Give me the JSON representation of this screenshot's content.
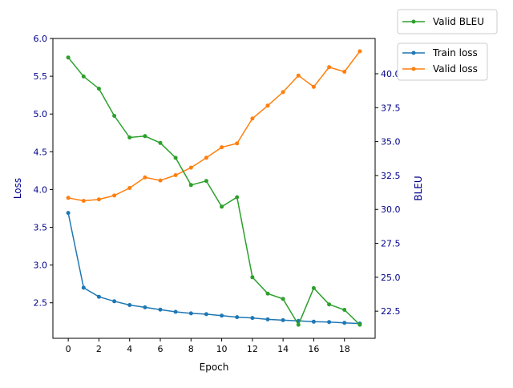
{
  "chart_data": {
    "type": "line",
    "x_axis": {
      "label": "Epoch",
      "ticks": [
        0,
        2,
        4,
        6,
        8,
        10,
        12,
        14,
        16,
        18
      ],
      "range": [
        -1,
        20
      ]
    },
    "left_axis": {
      "label": "Loss",
      "label_color": "#00008b",
      "tick_color": "#00008b",
      "ticks": [
        "2.5",
        "3.0",
        "3.5",
        "4.0",
        "4.5",
        "5.0",
        "5.5",
        "6.0"
      ],
      "range": [
        2.03,
        6.0
      ]
    },
    "right_axis": {
      "label": "BLEU",
      "label_color": "#00008b",
      "tick_color": "#00008b",
      "ticks": [
        "22.5",
        "25.0",
        "27.5",
        "30.0",
        "32.5",
        "35.0",
        "37.5",
        "40.0"
      ],
      "range": [
        20.5,
        42.6
      ]
    },
    "x": [
      0,
      1,
      2,
      3,
      4,
      5,
      6,
      7,
      8,
      9,
      10,
      11,
      12,
      13,
      14,
      15,
      16,
      17,
      18,
      19
    ],
    "series": [
      {
        "name": "Train loss",
        "axis": "left",
        "color": "#1f77b4",
        "values": [
          3.69,
          2.7,
          2.58,
          2.52,
          2.47,
          2.44,
          2.41,
          2.38,
          2.36,
          2.35,
          2.33,
          2.31,
          2.3,
          2.28,
          2.27,
          2.26,
          2.25,
          2.245,
          2.235,
          2.225
        ]
      },
      {
        "name": "Valid loss",
        "axis": "left",
        "color": "#ff7f0e",
        "values": [
          3.89,
          3.85,
          3.87,
          3.92,
          4.02,
          4.16,
          4.12,
          4.19,
          4.29,
          4.42,
          4.56,
          4.61,
          4.94,
          5.11,
          5.29,
          5.51,
          5.36,
          5.62,
          5.56,
          5.83
        ]
      },
      {
        "name": "Valid BLEU",
        "axis": "right",
        "color": "#2ca02c",
        "values": [
          41.2,
          39.8,
          38.9,
          36.9,
          35.3,
          35.4,
          34.9,
          33.8,
          31.8,
          32.1,
          30.2,
          30.9,
          25.0,
          23.8,
          23.4,
          21.5,
          24.2,
          23.0,
          22.6,
          21.5
        ]
      }
    ],
    "legends": [
      {
        "placement": "outside-top-right",
        "entries": [
          "Valid BLEU"
        ]
      },
      {
        "placement": "outside-right",
        "entries": [
          "Train loss",
          "Valid loss"
        ]
      }
    ],
    "grid": false
  }
}
